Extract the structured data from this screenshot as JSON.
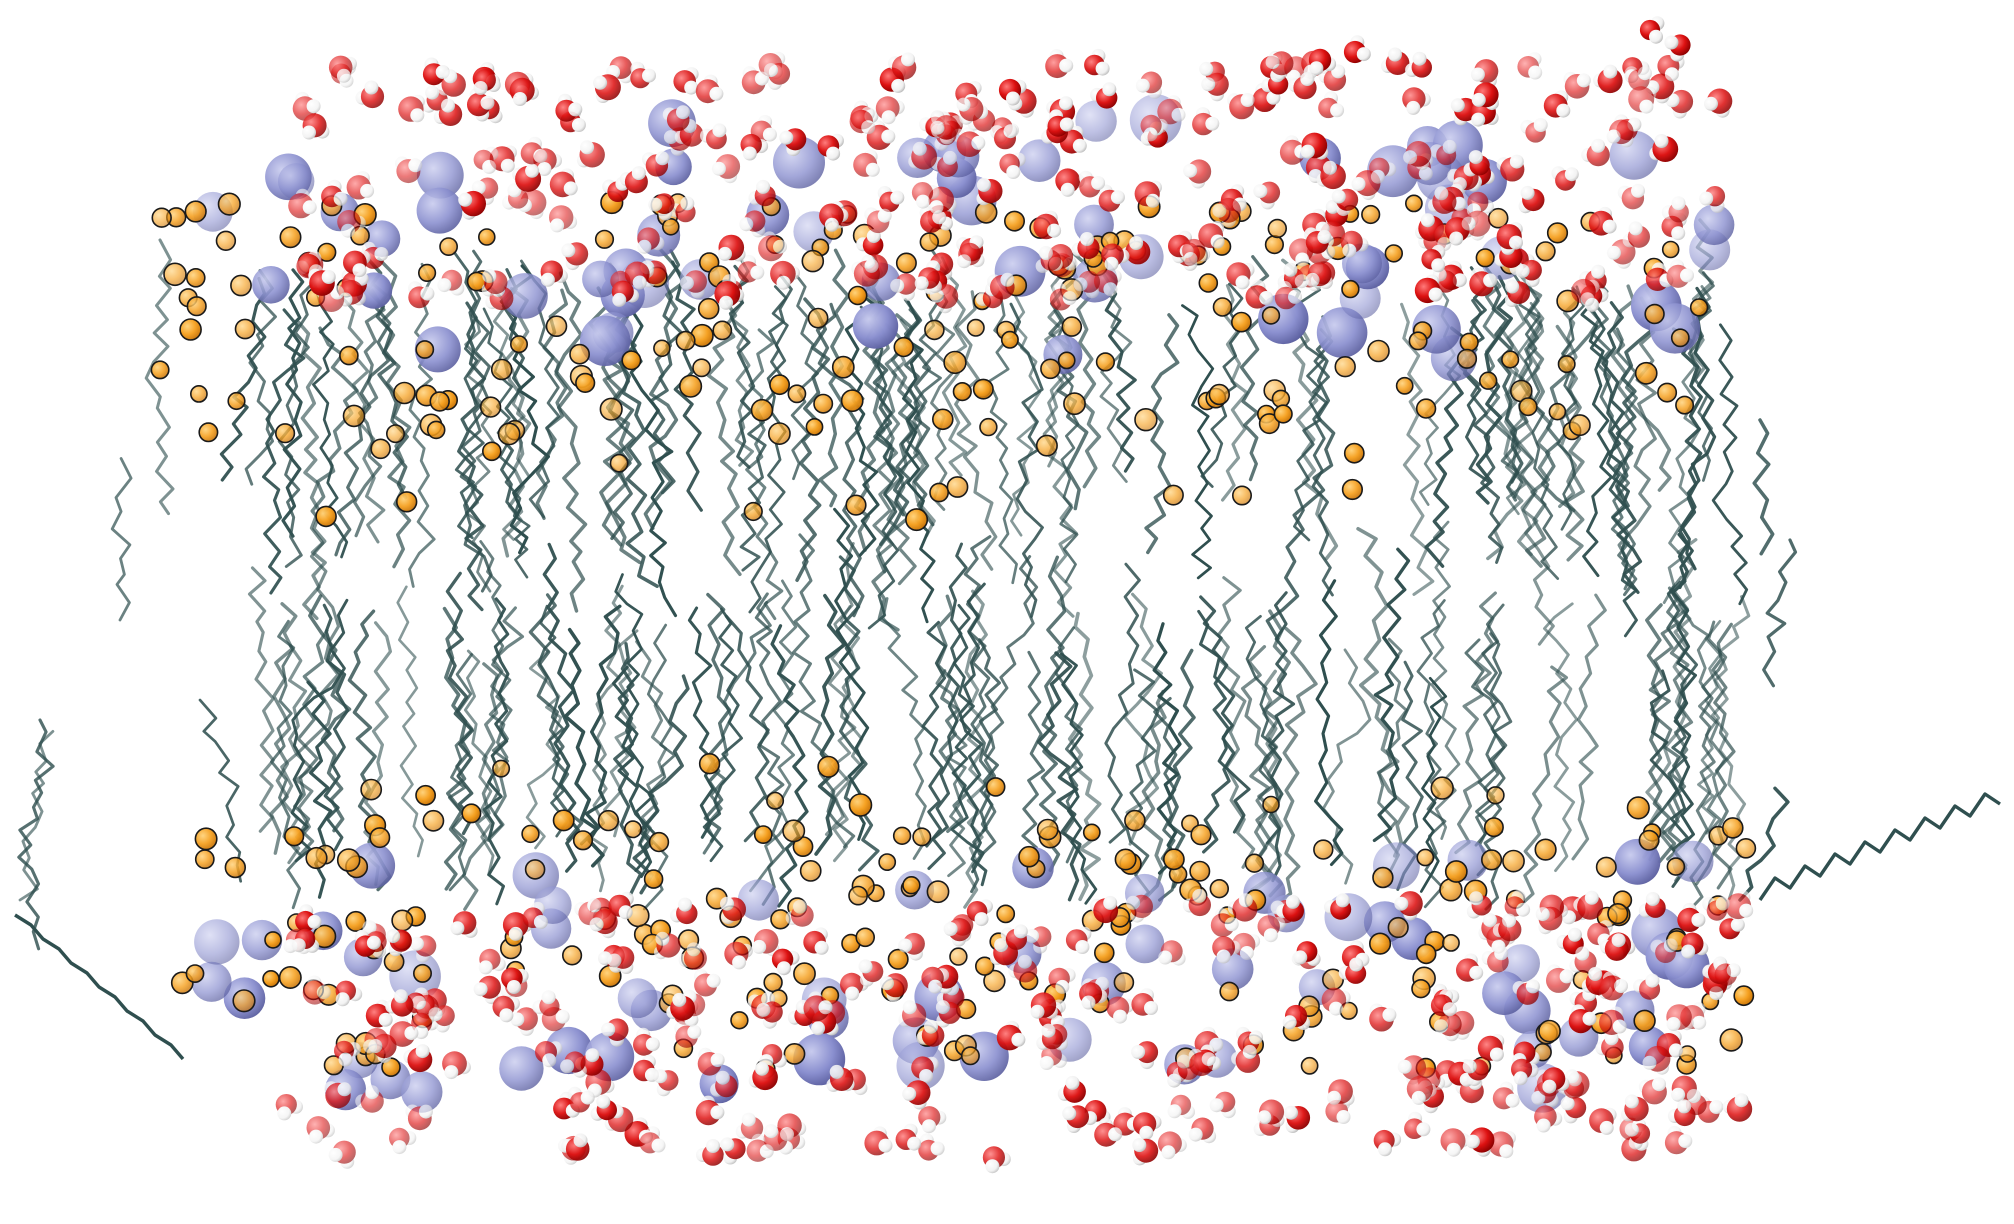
{
  "image": {
    "kind": "molecular-render",
    "background_color": "#ffffff",
    "layers": [
      {
        "name": "upper-water-layer",
        "components": [
          "oxygen",
          "hydrogen"
        ]
      },
      {
        "name": "upper-headgroup-layer",
        "components": [
          "phosphorus",
          "ester-beads"
        ]
      },
      {
        "name": "hydrocarbon-core",
        "components": [
          "lipid-tails"
        ]
      },
      {
        "name": "lower-headgroup-layer",
        "components": [
          "phosphorus",
          "ester-beads"
        ]
      },
      {
        "name": "lower-water-layer",
        "components": [
          "oxygen",
          "hydrogen"
        ]
      }
    ],
    "colors": {
      "lipid_tail": "#2f4f4f",
      "ester_bead": "#f5a020",
      "ester_outline": "#1a1a1a",
      "phosphorus": "#8a8fcf",
      "oxygen": "#dd1111",
      "hydrogen": "#f4f4f4"
    }
  }
}
